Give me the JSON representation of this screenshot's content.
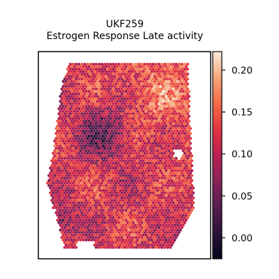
{
  "chart_data": {
    "type": "heatmap",
    "title": "UKF259",
    "subtitle": "Estrogen Response Late activity",
    "xlabel": "",
    "ylabel": "",
    "grid": false,
    "colormap": "rocket",
    "colorbar": {
      "position": "right",
      "vmin": -0.025,
      "vmax": 0.222,
      "ticks": [
        0.0,
        0.05,
        0.1,
        0.15,
        0.2
      ],
      "tick_labels": [
        "0.00",
        "0.05",
        "0.10",
        "0.15",
        "0.20"
      ]
    },
    "colors": {
      "low": "#03051a",
      "mid": "#cb1b4f",
      "high": "#faebdd"
    },
    "value_summary": {
      "typical_range": [
        0.05,
        0.17
      ],
      "low_regions": [
        "center-left core",
        "lower-left edge"
      ],
      "high_regions": [
        "upper-right",
        "scattered edges"
      ]
    }
  }
}
